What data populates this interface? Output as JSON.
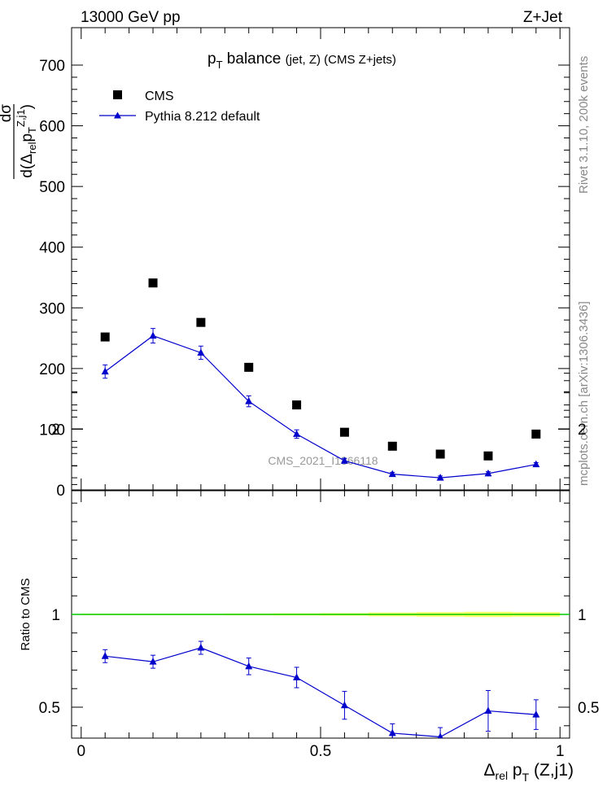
{
  "header": {
    "left": "13000 GeV pp",
    "right": "Z+Jet"
  },
  "side_labels": {
    "rivet": "Rivet 3.1.10,  200k events",
    "mcplots": "mcplots.cern.ch [arXiv:1306.3436]"
  },
  "watermark": "CMS_2021_I1866118",
  "colors": {
    "data": "#000000",
    "mc": "#0000cc",
    "band_yellow": "#ffff00",
    "band_green": "#00cc00"
  },
  "chart_data": [
    {
      "type": "scatter",
      "title": {
        "main": "p",
        "sub": "T",
        "rest": " balance ",
        "small": "(jet, Z)",
        "tail": " (CMS Z+jets)"
      },
      "ylabel": {
        "num": "dσ",
        "den_pre": "d(Δ",
        "den_sub": "rel",
        "den_mid": "p",
        "den_p_sub": "T",
        "den_p_sup": "Z,j1",
        "den_post": ")"
      },
      "ylim": [
        0,
        700
      ],
      "yticks": [
        0,
        100,
        200,
        300,
        400,
        500,
        600,
        700
      ],
      "ytick_labels": [
        "0",
        "100",
        "200",
        "300",
        "400",
        "500",
        "600",
        "700"
      ],
      "x": [
        0.05,
        0.15,
        0.25,
        0.35,
        0.45,
        0.55,
        0.65,
        0.75,
        0.85,
        0.95
      ],
      "legend": {
        "position": "top-left"
      },
      "series": [
        {
          "name": "CMS",
          "marker": "square",
          "values": [
            252,
            341,
            276,
            202,
            140,
            95,
            72,
            59,
            56,
            92
          ]
        },
        {
          "name": "Pythia 8.212 default",
          "marker": "triangle",
          "line": true,
          "values": [
            195,
            254,
            226,
            146,
            92,
            48,
            26,
            20,
            27,
            42
          ],
          "errors": [
            11,
            12,
            11,
            9,
            7,
            4,
            3,
            3,
            3,
            3
          ]
        }
      ]
    },
    {
      "type": "line",
      "ylabel": "Ratio to CMS",
      "xlabel": {
        "pre": "Δ",
        "sub": "rel",
        "mid": " p",
        "p_sub": "T",
        "post": " (Z,j1)"
      },
      "xlim": [
        -0.02,
        1.02
      ],
      "xticks": [
        0,
        0.5,
        1
      ],
      "xtick_labels": [
        "0",
        "0.5",
        "1"
      ],
      "ylim": [
        0.35,
        2.35
      ],
      "yticks": [
        0.5,
        1,
        2
      ],
      "ytick_labels": [
        "0.5",
        "1",
        "2"
      ],
      "reference": 1,
      "series": [
        {
          "name": "Pythia 8.212 default",
          "x": [
            0.05,
            0.15,
            0.25,
            0.35,
            0.45,
            0.55,
            0.65,
            0.75,
            0.85,
            0.95
          ],
          "values": [
            0.775,
            0.745,
            0.82,
            0.72,
            0.66,
            0.51,
            0.36,
            0.34,
            0.48,
            0.46
          ],
          "errors": [
            0.035,
            0.035,
            0.035,
            0.045,
            0.055,
            0.075,
            0.05,
            0.05,
            0.11,
            0.08
          ]
        }
      ]
    }
  ]
}
